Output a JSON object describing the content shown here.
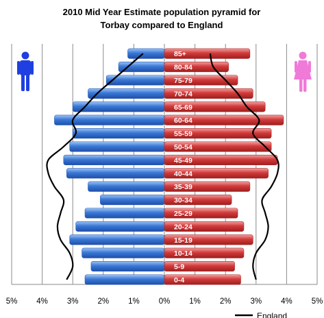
{
  "chart_data": {
    "type": "bar",
    "orientation": "horizontal-pyramid",
    "title": "2010 Mid Year Estimate population pyramid for Torbay compared to England",
    "title_lines": [
      "2010  Mid Year Estimate population pyramid for",
      "Torbay compared to England"
    ],
    "categories": [
      "0-4",
      "5-9",
      "10-14",
      "15-19",
      "20-24",
      "25-29",
      "30-34",
      "35-39",
      "40-44",
      "45-49",
      "50-54",
      "55-59",
      "60-64",
      "65-69",
      "70-74",
      "75-79",
      "80-84",
      "85+"
    ],
    "series": [
      {
        "name": "Torbay Males",
        "side": "left",
        "color": "#3a78d6",
        "values": [
          2.6,
          2.4,
          2.7,
          3.1,
          2.9,
          2.6,
          2.1,
          2.5,
          3.2,
          3.3,
          3.1,
          3.0,
          3.6,
          3.0,
          2.5,
          1.9,
          1.5,
          1.2
        ]
      },
      {
        "name": "Torbay Females",
        "side": "right",
        "color": "#d23a3a",
        "values": [
          2.5,
          2.3,
          2.6,
          2.9,
          2.6,
          2.4,
          2.2,
          2.8,
          3.4,
          3.7,
          3.5,
          3.5,
          3.9,
          3.3,
          2.9,
          2.4,
          2.1,
          2.8
        ]
      },
      {
        "name": "England",
        "type": "line",
        "color": "#000000",
        "left_values": [
          3.2,
          3.0,
          3.1,
          3.4,
          3.5,
          3.4,
          3.3,
          3.6,
          3.8,
          3.8,
          3.3,
          2.9,
          3.0,
          2.6,
          2.2,
          1.7,
          1.2,
          0.7
        ],
        "right_values": [
          3.0,
          2.9,
          3.0,
          3.3,
          3.4,
          3.3,
          3.2,
          3.5,
          3.7,
          3.7,
          3.3,
          2.9,
          3.1,
          2.7,
          2.4,
          2.0,
          1.6,
          1.5
        ]
      }
    ],
    "x_ticks": [
      "5%",
      "4%",
      "3%",
      "2%",
      "1%",
      "0%",
      "1%",
      "2%",
      "3%",
      "4%",
      "5%"
    ],
    "xlim": [
      -5,
      5
    ],
    "grid": true,
    "legend": [
      {
        "label": "England",
        "marker": "line"
      }
    ],
    "legend_position": "bottom-right",
    "icons": {
      "left": "male-figure-icon",
      "right": "female-figure-icon",
      "left_color": "#1f3fe0",
      "right_color": "#f07ad8"
    }
  }
}
